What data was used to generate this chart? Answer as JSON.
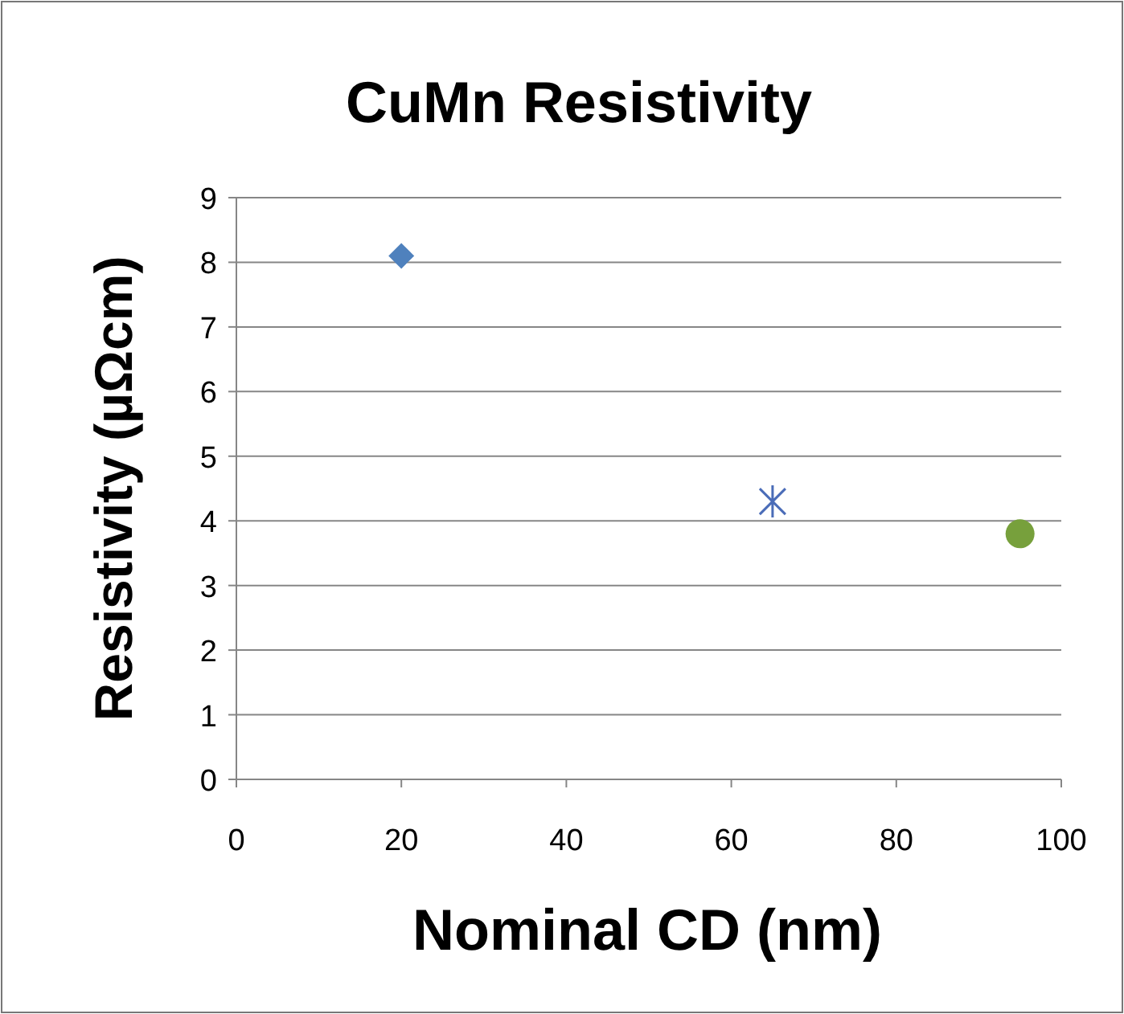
{
  "chart_data": {
    "type": "scatter",
    "title": "CuMn Resistivity",
    "xlabel": "Nominal CD (nm)",
    "ylabel": "Resistivity (µΩcm)",
    "xlim": [
      0,
      100
    ],
    "xticks": [
      0,
      20,
      40,
      60,
      80,
      100
    ],
    "ylim": [
      0,
      9
    ],
    "yticks": [
      0,
      1,
      2,
      3,
      4,
      5,
      6,
      7,
      8,
      9
    ],
    "grid": "y",
    "series": [
      {
        "color": "#4f81bd",
        "marker": "diamond",
        "x": [
          20
        ],
        "values": [
          8.1
        ]
      },
      {
        "color": "#4a6cb8",
        "marker": "cross",
        "x": [
          65
        ],
        "values": [
          4.3
        ]
      },
      {
        "color": "#77a03c",
        "marker": "circle",
        "x": [
          95
        ],
        "values": [
          3.8
        ]
      }
    ]
  }
}
